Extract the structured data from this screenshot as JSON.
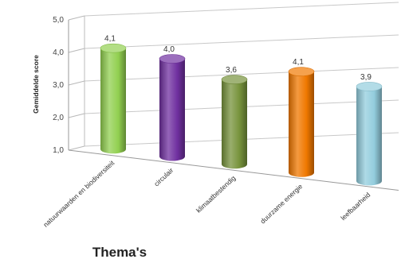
{
  "chart_data": {
    "type": "bar",
    "categories": [
      "natuurwaarden en biodiversiteit",
      "circulair",
      "klimaatbestendig",
      "duurzame energie",
      "leefbaarheid"
    ],
    "values": [
      4.1,
      4.0,
      3.6,
      4.1,
      3.9
    ],
    "data_labels": [
      "4,1",
      "4,0",
      "3,6",
      "4,1",
      "3,9"
    ],
    "colors": [
      "#92d050",
      "#7030a0",
      "#77933c",
      "#f07800",
      "#93cddd"
    ],
    "xlabel": "Thema's",
    "ylabel": "Gemiddelde score",
    "ylim": [
      1.0,
      5.0
    ],
    "yticks": [
      "1,0",
      "2,0",
      "3,0",
      "4,0",
      "5,0"
    ],
    "grid": true,
    "legend": "none",
    "style": "3d-cylinder"
  }
}
